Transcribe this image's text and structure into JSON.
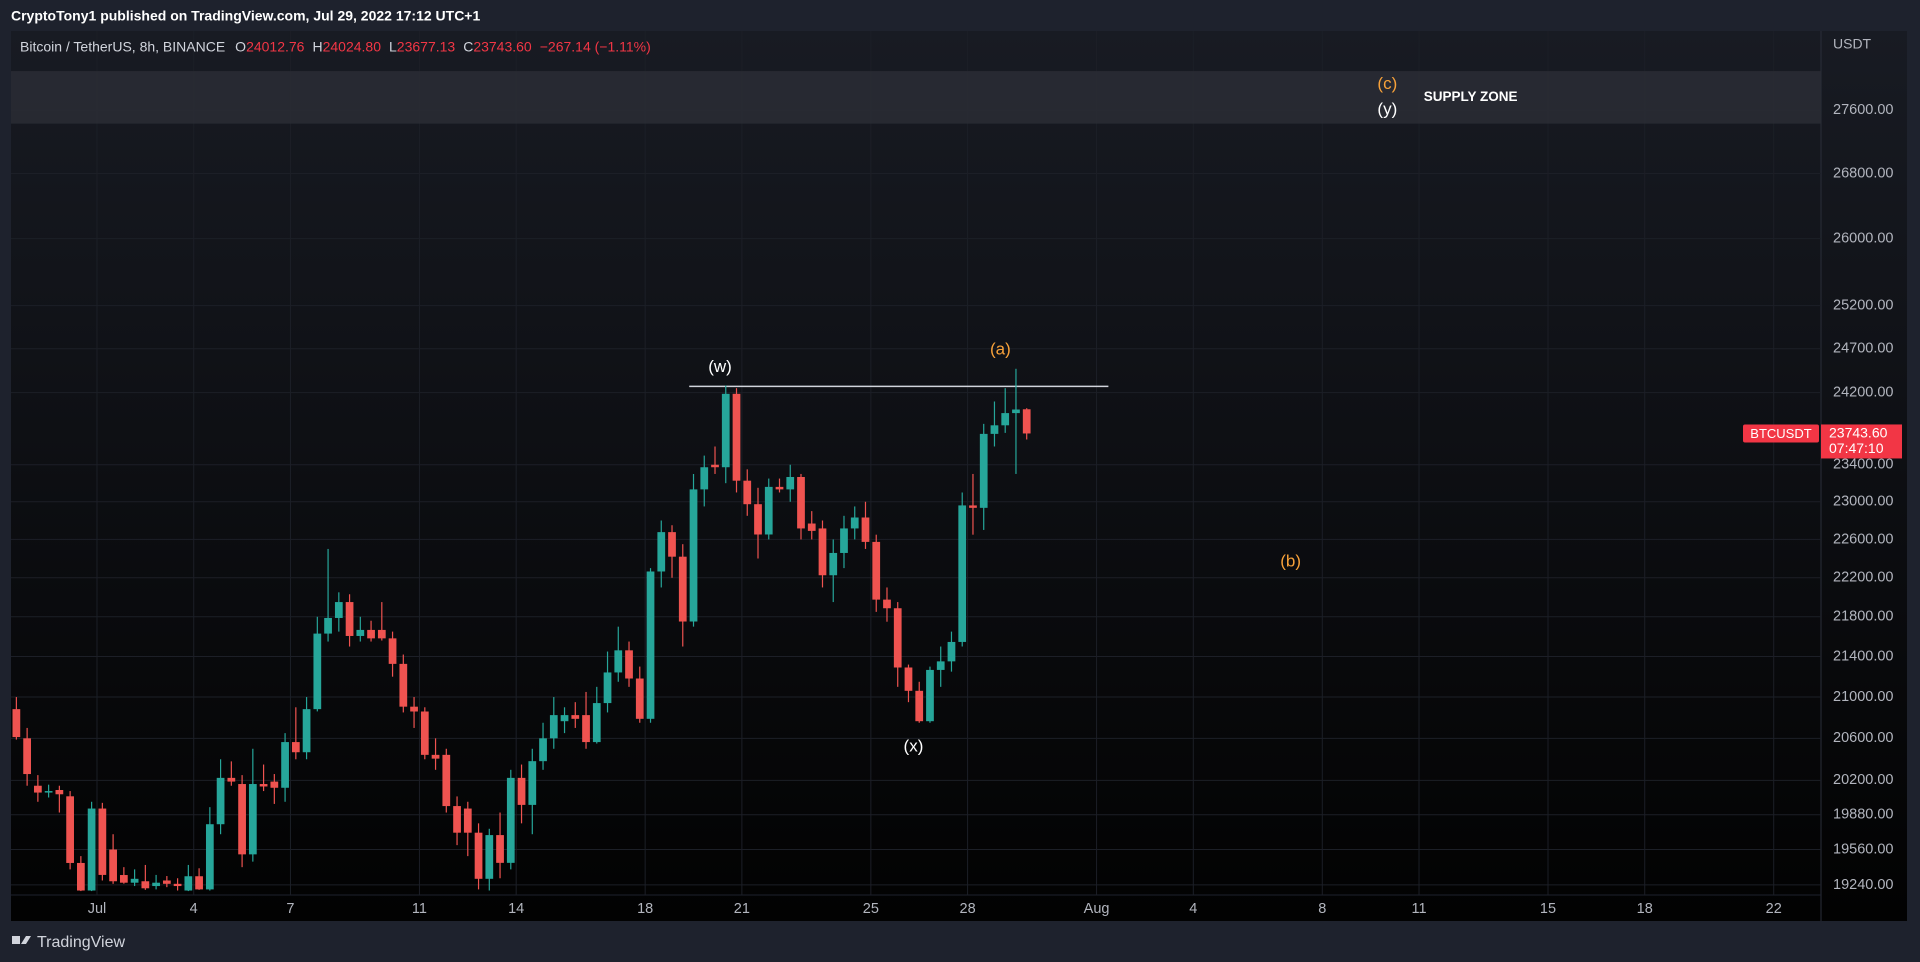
{
  "header": {
    "published": "CryptoTony1 published on TradingView.com, Jul 29, 2022 17:12 UTC+1",
    "symbol": "Bitcoin / TetherUS, 8h, BINANCE",
    "ohlc": [
      {
        "key": "O",
        "value": "24012.76"
      },
      {
        "key": "H",
        "value": "24024.80"
      },
      {
        "key": "L",
        "value": "23677.13"
      },
      {
        "key": "C",
        "value": "23743.60"
      }
    ],
    "change": "−267.14 (−1.11%)"
  },
  "footer": {
    "brand": "TradingView"
  },
  "chart_data": {
    "type": "candlestick",
    "unit": "USDT",
    "log_scale": true,
    "grid": true,
    "up_color": "#26a69a",
    "down_color": "#ef5350",
    "open": [
      20882,
      20600,
      20150,
      20086,
      20110,
      20051,
      19438,
      19190,
      19937,
      19560,
      19329,
      19260,
      19273,
      19230,
      19280,
      19250,
      19190,
      19318,
      19200,
      19792,
      20224,
      20166,
      19516,
      20166,
      20189,
      20131,
      20564,
      20467,
      20882,
      21630,
      21788,
      21950,
      21606,
      21667,
      21667,
      21582,
      21327,
      20906,
      20859,
      20442,
      20442,
      19960,
      19937,
      19714,
      19295,
      19692,
      19439,
      20224,
      19971,
      20382,
      20600,
      20765,
      20824,
      20824,
      20564,
      20941,
      21242,
      21462,
      21182,
      20788,
      22265,
      22677,
      22419,
      21752,
      23133,
      23400,
      23373,
      24186,
      23227,
      22974,
      22652,
      23160,
      23133,
      23267,
      22768,
      22716,
      22226,
      22458,
      22716,
      22832,
      22574,
      21975,
      21887,
      21291,
      21061,
      20765,
      21267,
      21352,
      21546,
      22961,
      22935,
      23739,
      23834,
      23970,
      24012.76
    ],
    "high": [
      21000,
      20700,
      20250,
      20160,
      20150,
      20100,
      19500,
      20000,
      19990,
      19700,
      19400,
      19380,
      19420,
      19330,
      19320,
      19300,
      19420,
      19390,
      19950,
      20400,
      20380,
      20250,
      20500,
      20350,
      20260,
      20650,
      20900,
      21000,
      21800,
      22500,
      22050,
      22030,
      21800,
      21760,
      21950,
      21650,
      21420,
      21000,
      20900,
      20600,
      20500,
      20050,
      20000,
      19800,
      19750,
      19900,
      20300,
      20350,
      20500,
      20750,
      21000,
      20900,
      20950,
      21050,
      21100,
      21450,
      21700,
      21550,
      21300,
      22300,
      22800,
      22750,
      22550,
      23300,
      23500,
      23600,
      24280,
      24250,
      23350,
      23150,
      23250,
      23250,
      23400,
      23300,
      22900,
      22800,
      22600,
      22850,
      22950,
      23000,
      22650,
      22100,
      21950,
      21320,
      21150,
      21300,
      21500,
      21650,
      23100,
      23300,
      23850,
      24100,
      24250,
      24470,
      24024.8
    ],
    "low": [
      20588,
      20150,
      20000,
      20040,
      19900,
      19380,
      19185,
      19185,
      19280,
      19250,
      19251,
      19230,
      19196,
      19200,
      19220,
      19190,
      19185,
      19196,
      19190,
      19700,
      20150,
      19400,
      19450,
      20100,
      19980,
      20000,
      20400,
      20400,
      20860,
      21550,
      21650,
      21500,
      21550,
      21550,
      21560,
      21200,
      20850,
      20700,
      20400,
      20300,
      19900,
      19600,
      19500,
      19200,
      19190,
      19300,
      19380,
      19800,
      19700,
      20300,
      20500,
      20650,
      20700,
      20500,
      20550,
      20850,
      21150,
      21100,
      20750,
      20750,
      22100,
      22200,
      21500,
      21700,
      22950,
      23300,
      23200,
      23100,
      22850,
      22400,
      22600,
      23100,
      23000,
      22600,
      22600,
      22100,
      21950,
      22300,
      22600,
      22500,
      21850,
      21750,
      21100,
      20950,
      20750,
      20750,
      21100,
      21250,
      21500,
      22650,
      22700,
      23600,
      23750,
      23300,
      23677.13
    ],
    "close": [
      20612,
      20260,
      20086,
      20100,
      20070,
      19438,
      19190,
      19937,
      19330,
      19273,
      19260,
      19295,
      19210,
      19260,
      19250,
      19230,
      19318,
      19200,
      19792,
      20224,
      20189,
      19516,
      20166,
      20143,
      20131,
      20564,
      20467,
      20882,
      21630,
      21788,
      21950,
      21606,
      21667,
      21582,
      21582,
      21327,
      20906,
      20859,
      20442,
      20406,
      19960,
      19714,
      19714,
      19295,
      19692,
      19439,
      20224,
      19971,
      20382,
      20600,
      20824,
      20824,
      20788,
      20564,
      20941,
      21242,
      21462,
      21182,
      20788,
      22265,
      22677,
      22419,
      21752,
      23133,
      23373,
      23373,
      24186,
      23227,
      22974,
      22652,
      23160,
      23133,
      23267,
      22716,
      22690,
      22226,
      22458,
      22716,
      22832,
      22574,
      21975,
      21887,
      21291,
      21061,
      20765,
      21267,
      21352,
      21546,
      22961,
      22935,
      23739,
      23834,
      23970,
      24010,
      23743.6
    ],
    "xlim": [
      0,
      168.4
    ],
    "xticks": [
      {
        "value": 8,
        "label": "Jul"
      },
      {
        "value": 17,
        "label": "4"
      },
      {
        "value": 26,
        "label": "7"
      },
      {
        "value": 38,
        "label": "11"
      },
      {
        "value": 47,
        "label": "14"
      },
      {
        "value": 59,
        "label": "18"
      },
      {
        "value": 68,
        "label": "21"
      },
      {
        "value": 80,
        "label": "25"
      },
      {
        "value": 89,
        "label": "28"
      },
      {
        "value": 101,
        "label": "Aug"
      },
      {
        "value": 110,
        "label": "4"
      },
      {
        "value": 122,
        "label": "8"
      },
      {
        "value": 131,
        "label": "11"
      },
      {
        "value": 143,
        "label": "15"
      },
      {
        "value": 152,
        "label": "18"
      },
      {
        "value": 164,
        "label": "22"
      }
    ],
    "ylim": [
      19150,
      28640
    ],
    "yticks": [
      {
        "value": 27600,
        "label": "27600.00"
      },
      {
        "value": 26800,
        "label": "26800.00"
      },
      {
        "value": 26000,
        "label": "26000.00"
      },
      {
        "value": 25200,
        "label": "25200.00"
      },
      {
        "value": 24700,
        "label": "24700.00"
      },
      {
        "value": 24200,
        "label": "24200.00"
      },
      {
        "value": 23400,
        "label": "23400.00"
      },
      {
        "value": 23000,
        "label": "23000.00"
      },
      {
        "value": 22600,
        "label": "22600.00"
      },
      {
        "value": 22200,
        "label": "22200.00"
      },
      {
        "value": 21800,
        "label": "21800.00"
      },
      {
        "value": 21400,
        "label": "21400.00"
      },
      {
        "value": 21000,
        "label": "21000.00"
      },
      {
        "value": 20600,
        "label": "20600.00"
      },
      {
        "value": 20200,
        "label": "20200.00"
      },
      {
        "value": 19880,
        "label": "19880.00"
      },
      {
        "value": 19560,
        "label": "19560.00"
      },
      {
        "value": 19240,
        "label": "19240.00"
      }
    ],
    "supply_zone": {
      "label": "SUPPLY ZONE",
      "range": [
        27430,
        28110
      ],
      "color": "#2a2d35"
    },
    "level": {
      "value": 24270,
      "from": 63.1,
      "to": 102.1,
      "color": "#d1d4dc"
    },
    "annotations": [
      {
        "text": "(c)",
        "color": "#f7a13a"
      },
      {
        "text": "(y)",
        "color": "#ffffff"
      },
      {
        "text": "(w)",
        "color": "#ffffff"
      },
      {
        "text": "(a)",
        "color": "#f7a13a"
      },
      {
        "text": "(b)",
        "color": "#f7a13a"
      },
      {
        "text": "(x)",
        "color": "#ffffff"
      }
    ],
    "last_price": {
      "symbol": "BTCUSDT",
      "value": 23743.6,
      "label": "23743.60",
      "countdown": "07:47:10",
      "color": "#f23645"
    }
  }
}
